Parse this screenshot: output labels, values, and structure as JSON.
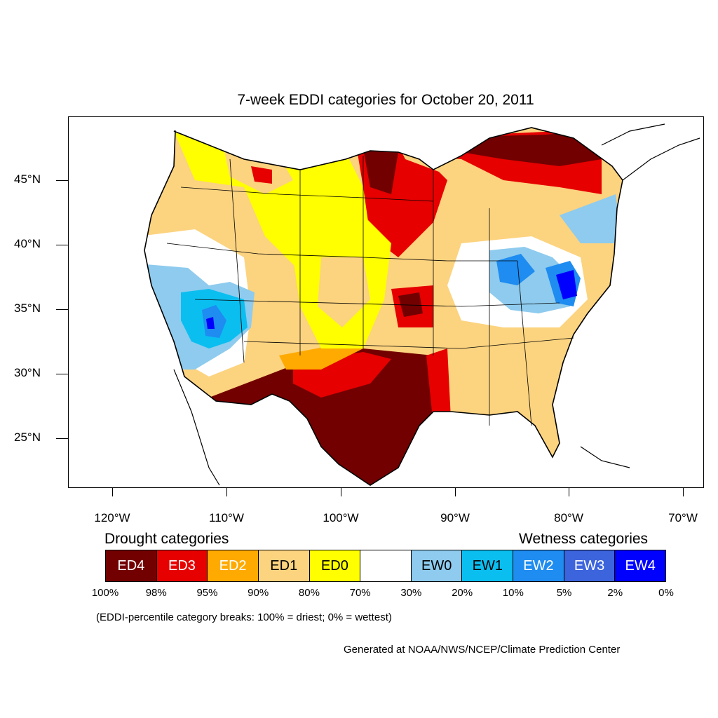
{
  "title": "7-week EDDI categories for October 20, 2011",
  "map": {
    "lat_labels": [
      "45°N",
      "40°N",
      "35°N",
      "30°N",
      "25°N"
    ],
    "lon_labels": [
      "120°W",
      "110°W",
      "100°W",
      "90°W",
      "80°W",
      "70°W"
    ]
  },
  "legend": {
    "drought_heading": "Drought categories",
    "wetness_heading": "Wetness categories",
    "categories": [
      {
        "label": "ED4",
        "color": "#730000",
        "text_color": "#ffffff"
      },
      {
        "label": "ED3",
        "color": "#e60000",
        "text_color": "#ffffff"
      },
      {
        "label": "ED2",
        "color": "#ffaa00",
        "text_color": "#ffffff"
      },
      {
        "label": "ED1",
        "color": "#fcd37f",
        "text_color": "#000000"
      },
      {
        "label": "ED0",
        "color": "#ffff00",
        "text_color": "#000000"
      },
      {
        "label": "",
        "color": "#ffffff",
        "text_color": "#000000"
      },
      {
        "label": "EW0",
        "color": "#8ecbee",
        "text_color": "#000000"
      },
      {
        "label": "EW1",
        "color": "#0bbef0",
        "text_color": "#000000"
      },
      {
        "label": "EW2",
        "color": "#1e8cf0",
        "text_color": "#ffffff"
      },
      {
        "label": "EW3",
        "color": "#3c64dc",
        "text_color": "#ffffff"
      },
      {
        "label": "EW4",
        "color": "#0000ff",
        "text_color": "#ffffff"
      }
    ],
    "breaks": [
      "100%",
      "98%",
      "95%",
      "90%",
      "80%",
      "70%",
      "30%",
      "20%",
      "10%",
      "5%",
      "2%",
      "0%"
    ]
  },
  "note": "(EDDI-percentile category breaks: 100% = driest; 0% = wettest)",
  "credit": "Generated at NOAA/NWS/NCEP/Climate Prediction Center"
}
